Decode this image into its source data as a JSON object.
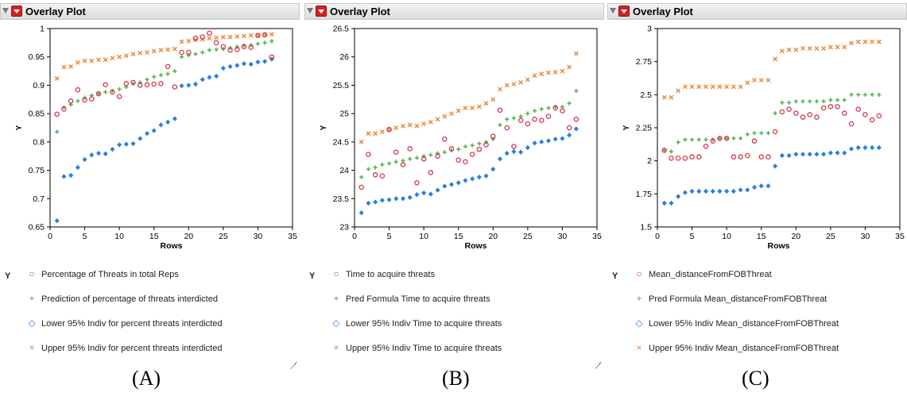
{
  "panels": [
    {
      "title": "Overlay Plot",
      "y_tag": "Y",
      "caption": "(A)",
      "legend": [
        {
          "symbol": "circle",
          "color": "#d8334a",
          "label": "Percentage of Threats in total Reps"
        },
        {
          "symbol": "plus",
          "color": "#4db34d",
          "label": "Prediction of percentage of threats interdicted"
        },
        {
          "symbol": "diamond",
          "color": "#2b7fe0",
          "label": "Lower 95% Indiv for percent threats interdicted"
        },
        {
          "symbol": "x",
          "color": "#ee8a3a",
          "label": "Upper 95% Indiv for percent threats interdicted"
        }
      ]
    },
    {
      "title": "Overlay Plot",
      "y_tag": "Y",
      "caption": "(B)",
      "legend": [
        {
          "symbol": "circle",
          "color": "#d8334a",
          "label": "Time to acquire threats"
        },
        {
          "symbol": "plus",
          "color": "#4db34d",
          "label": "Pred Formula Time to acquire threats"
        },
        {
          "symbol": "diamond",
          "color": "#2b7fe0",
          "label": "Lower 95% Indiv Time to acquire threats"
        },
        {
          "symbol": "x",
          "color": "#ee8a3a",
          "label": "Upper 95% Indiv Time to acquire threats"
        }
      ]
    },
    {
      "title": "Overlay Plot",
      "y_tag": "Y",
      "caption": "(C)",
      "legend": [
        {
          "symbol": "circle",
          "color": "#d8334a",
          "label": "Mean_distanceFromFOBThreat"
        },
        {
          "symbol": "plus",
          "color": "#4db34d",
          "label": "Pred Formula Mean_distanceFromFOBThreat"
        },
        {
          "symbol": "diamond",
          "color": "#2b7fe0",
          "label": "Lower 95% Indiv Mean_distanceFromFOBThreat"
        },
        {
          "symbol": "x",
          "color": "#ee8a3a",
          "label": "Upper 95% Indiv Mean_distanceFromFOBThreat"
        }
      ]
    }
  ],
  "chart_data": [
    {
      "type": "scatter",
      "xlabel": "Rows",
      "ylabel": "Y",
      "xlim": [
        0,
        35
      ],
      "ylim": [
        0.65,
        1.0
      ],
      "xticks": [
        "0",
        "5",
        "10",
        "15",
        "20",
        "25",
        "30",
        "35"
      ],
      "yticks": [
        "0.65",
        "0.7",
        "0.75",
        "0.8",
        "0.85",
        "0.9",
        "0.95",
        "1"
      ],
      "x": [
        1,
        2,
        3,
        4,
        5,
        6,
        7,
        8,
        9,
        10,
        11,
        12,
        13,
        14,
        15,
        16,
        17,
        18,
        19,
        20,
        21,
        22,
        23,
        24,
        25,
        26,
        27,
        28,
        29,
        30,
        31,
        32
      ],
      "series": [
        {
          "name": "Percentage of Threats in total Reps",
          "values": [
            0.849,
            0.858,
            0.872,
            0.892,
            0.874,
            0.876,
            0.885,
            0.901,
            0.888,
            0.88,
            0.903,
            0.905,
            0.9,
            0.901,
            0.902,
            0.903,
            0.933,
            0.897,
            0.958,
            0.958,
            0.983,
            0.985,
            0.992,
            0.975,
            0.968,
            0.962,
            0.963,
            0.968,
            0.967,
            0.988,
            0.989,
            0.95
          ]
        },
        {
          "name": "Prediction of percentage of threats interdicted",
          "values": [
            0.818,
            0.861,
            0.866,
            0.872,
            0.878,
            0.882,
            0.885,
            0.888,
            0.89,
            0.893,
            0.897,
            0.903,
            0.905,
            0.91,
            0.915,
            0.918,
            0.92,
            0.925,
            0.95,
            0.953,
            0.955,
            0.958,
            0.962,
            0.963,
            0.964,
            0.966,
            0.968,
            0.97,
            0.971,
            0.973,
            0.975,
            0.978
          ]
        },
        {
          "name": "Lower 95% Indiv for percent threats interdicted",
          "values": [
            0.661,
            0.739,
            0.741,
            0.755,
            0.769,
            0.777,
            0.78,
            0.779,
            0.787,
            0.795,
            0.796,
            0.797,
            0.806,
            0.815,
            0.82,
            0.83,
            0.835,
            0.841,
            0.899,
            0.9,
            0.902,
            0.91,
            0.914,
            0.916,
            0.93,
            0.933,
            0.935,
            0.938,
            0.937,
            0.941,
            0.942,
            0.946
          ]
        },
        {
          "name": "Upper 95% Indiv for percent threats interdicted",
          "values": [
            0.912,
            0.932,
            0.933,
            0.94,
            0.943,
            0.943,
            0.945,
            0.945,
            0.948,
            0.95,
            0.952,
            0.955,
            0.957,
            0.958,
            0.96,
            0.962,
            0.963,
            0.964,
            0.977,
            0.978,
            0.98,
            0.981,
            0.983,
            0.984,
            0.985,
            0.985,
            0.986,
            0.987,
            0.988,
            0.988,
            0.989,
            0.99
          ]
        }
      ]
    },
    {
      "type": "scatter",
      "xlabel": "Rows",
      "ylabel": "Y",
      "xlim": [
        0,
        35
      ],
      "ylim": [
        23,
        26.5
      ],
      "xticks": [
        "0",
        "5",
        "10",
        "15",
        "20",
        "25",
        "30",
        "35"
      ],
      "yticks": [
        "23",
        "23.5",
        "24",
        "24.5",
        "25",
        "25.5",
        "26",
        "26.5"
      ],
      "x": [
        1,
        2,
        3,
        4,
        5,
        6,
        7,
        8,
        9,
        10,
        11,
        12,
        13,
        14,
        15,
        16,
        17,
        18,
        19,
        20,
        21,
        22,
        23,
        24,
        25,
        26,
        27,
        28,
        29,
        30,
        31,
        32
      ],
      "series": [
        {
          "name": "Time to acquire threats",
          "values": [
            23.7,
            24.28,
            23.92,
            23.9,
            24.72,
            24.32,
            24.1,
            24.38,
            23.78,
            24.2,
            23.96,
            24.25,
            24.55,
            24.38,
            24.18,
            24.15,
            24.28,
            24.37,
            24.45,
            24.6,
            25.06,
            24.75,
            24.42,
            24.88,
            24.82,
            24.9,
            24.88,
            24.95,
            25.1,
            25.05,
            24.75,
            24.9
          ]
        },
        {
          "name": "Pred Formula Time to acquire threats",
          "values": [
            23.88,
            24.02,
            24.05,
            24.1,
            24.12,
            24.15,
            24.17,
            24.2,
            24.22,
            24.25,
            24.27,
            24.3,
            24.32,
            24.35,
            24.37,
            24.42,
            24.44,
            24.47,
            24.5,
            24.55,
            24.8,
            24.9,
            24.92,
            24.95,
            25.0,
            25.05,
            25.08,
            25.1,
            25.12,
            25.12,
            25.18,
            25.4
          ]
        },
        {
          "name": "Lower 95% Indiv Time to acquire threats",
          "values": [
            23.25,
            23.42,
            23.44,
            23.47,
            23.48,
            23.5,
            23.5,
            23.52,
            23.57,
            23.6,
            23.58,
            23.65,
            23.72,
            23.75,
            23.78,
            23.82,
            23.85,
            23.88,
            23.9,
            24.02,
            24.2,
            24.3,
            24.33,
            24.32,
            24.4,
            24.48,
            24.5,
            24.52,
            24.55,
            24.56,
            24.62,
            24.73
          ]
        },
        {
          "name": "Upper 95% Indiv Time to acquire threats",
          "values": [
            24.5,
            24.65,
            24.65,
            24.68,
            24.72,
            24.75,
            24.78,
            24.8,
            24.78,
            24.82,
            24.85,
            24.9,
            24.95,
            25.0,
            25.05,
            25.1,
            25.1,
            25.12,
            25.18,
            25.25,
            25.43,
            25.5,
            25.52,
            25.55,
            25.6,
            25.67,
            25.7,
            25.72,
            25.73,
            25.75,
            25.82,
            26.06
          ]
        }
      ]
    },
    {
      "type": "scatter",
      "xlabel": "Rows",
      "ylabel": "Y",
      "xlim": [
        0,
        35
      ],
      "ylim": [
        1.5,
        3.0
      ],
      "xticks": [
        "0",
        "5",
        "10",
        "15",
        "20",
        "25",
        "30",
        "35"
      ],
      "yticks": [
        "1.5",
        "1.75",
        "2",
        "2.25",
        "2.5",
        "2.75",
        "3"
      ],
      "x": [
        1,
        2,
        3,
        4,
        5,
        6,
        7,
        8,
        9,
        10,
        11,
        12,
        13,
        14,
        15,
        16,
        17,
        18,
        19,
        20,
        21,
        22,
        23,
        24,
        25,
        26,
        27,
        28,
        29,
        30,
        31,
        32
      ],
      "series": [
        {
          "name": "Mean_distanceFromFOBThreat",
          "values": [
            2.08,
            2.02,
            2.02,
            2.02,
            2.03,
            2.03,
            2.11,
            2.15,
            2.17,
            2.17,
            2.03,
            2.03,
            2.04,
            2.15,
            2.03,
            2.03,
            2.22,
            2.37,
            2.39,
            2.36,
            2.33,
            2.35,
            2.33,
            2.4,
            2.41,
            2.41,
            2.36,
            2.28,
            2.39,
            2.35,
            2.31,
            2.34
          ]
        },
        {
          "name": "Pred Formula Mean_distanceFromFOBThreat",
          "values": [
            2.08,
            2.07,
            2.14,
            2.16,
            2.16,
            2.16,
            2.16,
            2.16,
            2.17,
            2.17,
            2.17,
            2.17,
            2.2,
            2.21,
            2.21,
            2.21,
            2.36,
            2.44,
            2.44,
            2.45,
            2.45,
            2.45,
            2.45,
            2.45,
            2.46,
            2.46,
            2.46,
            2.5,
            2.5,
            2.5,
            2.5,
            2.5
          ]
        },
        {
          "name": "Lower 95% Indiv Mean_distanceFromFOBThreat",
          "values": [
            1.68,
            1.68,
            1.73,
            1.76,
            1.77,
            1.77,
            1.77,
            1.77,
            1.77,
            1.77,
            1.77,
            1.78,
            1.78,
            1.8,
            1.81,
            1.81,
            1.96,
            2.04,
            2.04,
            2.05,
            2.05,
            2.05,
            2.05,
            2.05,
            2.06,
            2.06,
            2.06,
            2.09,
            2.1,
            2.1,
            2.1,
            2.1
          ]
        },
        {
          "name": "Upper 95% Indiv Mean_distanceFromFOBThreat",
          "values": [
            2.48,
            2.48,
            2.53,
            2.56,
            2.56,
            2.56,
            2.56,
            2.56,
            2.56,
            2.56,
            2.56,
            2.56,
            2.59,
            2.61,
            2.61,
            2.61,
            2.77,
            2.83,
            2.84,
            2.84,
            2.85,
            2.85,
            2.85,
            2.85,
            2.86,
            2.86,
            2.86,
            2.89,
            2.9,
            2.9,
            2.9,
            2.9
          ]
        }
      ]
    }
  ]
}
